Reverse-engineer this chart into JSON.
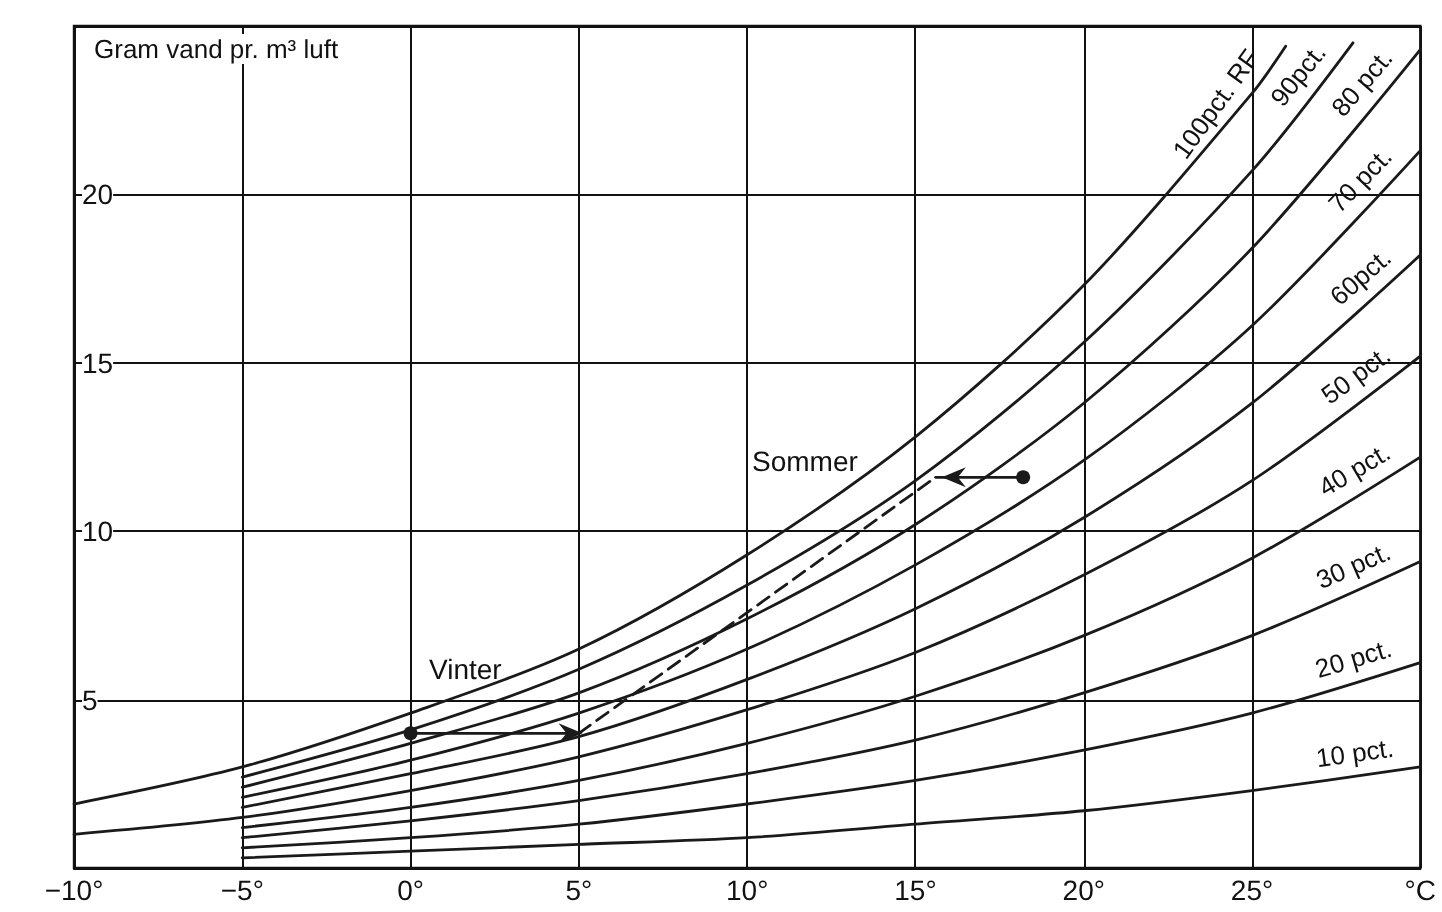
{
  "chart_data": {
    "type": "line",
    "ylabel": "Gram vand pr. m³ luft",
    "xlim": [
      -10,
      30
    ],
    "ylim": [
      0,
      25
    ],
    "xticks": [
      {
        "value": -10,
        "label": "−10°"
      },
      {
        "value": -5,
        "label": "−5°"
      },
      {
        "value": 0,
        "label": "0°"
      },
      {
        "value": 5,
        "label": "5°"
      },
      {
        "value": 10,
        "label": "10°"
      },
      {
        "value": 15,
        "label": "15°"
      },
      {
        "value": 20,
        "label": "20°"
      },
      {
        "value": 25,
        "label": "25°"
      },
      {
        "value": 30,
        "label": "°C"
      }
    ],
    "yticks": [
      {
        "value": 0,
        "label": null
      },
      5,
      10,
      15,
      20,
      {
        "value": 25,
        "label": null
      }
    ],
    "grid": true,
    "legend": false,
    "marker": "none",
    "line_style": "solid",
    "annotations": [
      {
        "text": "Vinter",
        "x": 0,
        "y": 4.0
      },
      {
        "text": "Sommer",
        "x": 15.6,
        "y": 11.6
      }
    ],
    "series": [
      {
        "name": "100pct. RF",
        "color": "#1a1a1a",
        "x": [
          -10,
          -5,
          0,
          5,
          10,
          15,
          20,
          25,
          26
        ],
        "values": [
          1.9,
          3.0,
          4.6,
          6.5,
          9.3,
          12.8,
          17.3,
          23.0,
          24.4
        ]
      },
      {
        "name": "90pct.",
        "color": "#1a1a1a",
        "x": [
          -5,
          0,
          5,
          10,
          15,
          20,
          25,
          28
        ],
        "values": [
          2.7,
          4.1,
          5.9,
          8.4,
          11.5,
          15.6,
          20.7,
          24.5
        ]
      },
      {
        "name": "80 pct.",
        "color": "#1a1a1a",
        "x": [
          -5,
          0,
          5,
          10,
          15,
          20,
          25,
          30
        ],
        "values": [
          2.4,
          3.7,
          5.2,
          7.4,
          10.2,
          13.8,
          18.4,
          24.3
        ]
      },
      {
        "name": "70 pct.",
        "color": "#1a1a1a",
        "x": [
          -5,
          0,
          5,
          10,
          15,
          20,
          25,
          30
        ],
        "values": [
          2.1,
          3.2,
          4.6,
          6.5,
          9.0,
          12.1,
          16.1,
          21.3
        ]
      },
      {
        "name": "60pct.",
        "color": "#1a1a1a",
        "x": [
          -5,
          0,
          5,
          10,
          15,
          20,
          25,
          30
        ],
        "values": [
          1.8,
          2.8,
          3.9,
          5.6,
          7.7,
          10.4,
          13.8,
          18.2
        ]
      },
      {
        "name": "50 pct.",
        "color": "#1a1a1a",
        "x": [
          -10,
          -5,
          0,
          5,
          10,
          15,
          20,
          25,
          30
        ],
        "values": [
          1.0,
          1.5,
          2.3,
          3.3,
          4.7,
          6.4,
          8.7,
          11.5,
          15.2
        ]
      },
      {
        "name": "40 pct.",
        "color": "#1a1a1a",
        "x": [
          -5,
          0,
          5,
          10,
          15,
          20,
          25,
          30
        ],
        "values": [
          1.2,
          1.8,
          2.6,
          3.7,
          5.1,
          6.9,
          9.2,
          12.2
        ]
      },
      {
        "name": "30 pct.",
        "color": "#1a1a1a",
        "x": [
          -5,
          0,
          5,
          10,
          15,
          20,
          25,
          30
        ],
        "values": [
          0.9,
          1.4,
          2.0,
          2.8,
          3.8,
          5.2,
          6.9,
          9.1
        ]
      },
      {
        "name": "20 pct.",
        "color": "#1a1a1a",
        "x": [
          -5,
          0,
          5,
          10,
          15,
          20,
          25,
          30
        ],
        "values": [
          0.6,
          0.9,
          1.3,
          1.9,
          2.6,
          3.5,
          4.6,
          6.1
        ]
      },
      {
        "name": "10 pct.",
        "color": "#1a1a1a",
        "x": [
          -5,
          0,
          5,
          10,
          15,
          20,
          25,
          30
        ],
        "values": [
          0.3,
          0.5,
          0.7,
          0.9,
          1.3,
          1.7,
          2.3,
          3.0
        ]
      },
      {
        "color": "#1a1a1a",
        "marker": "circle",
        "x": [
          0,
          5
        ],
        "values": [
          4.0,
          4.0
        ]
      },
      {
        "color": "#1a1a1a",
        "marker": "circle",
        "x": [
          18.2,
          15.6
        ],
        "values": [
          11.6,
          11.6
        ]
      },
      {
        "color": "#1a1a1a",
        "line_style": "dashed",
        "x": [
          5,
          15.6
        ],
        "values": [
          4.0,
          11.6
        ]
      }
    ]
  }
}
